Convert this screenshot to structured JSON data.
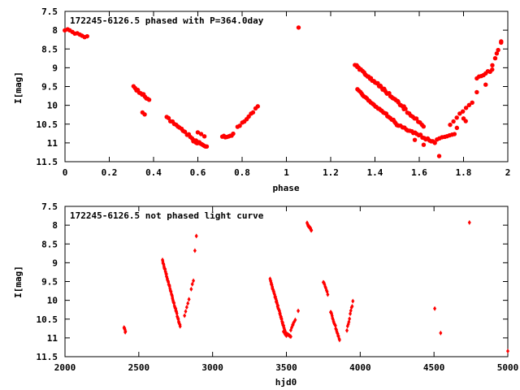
{
  "chart_data": [
    {
      "type": "scatter",
      "title": "172245-6126.5 phased with P=364.0day",
      "xlabel": "phase",
      "ylabel": "I[mag]",
      "xlim": [
        0,
        2
      ],
      "ylim": [
        7.5,
        11.5
      ],
      "y_inverted": true,
      "grid": false,
      "marker": "filled-circle",
      "color": "#ff0000",
      "xticks": [
        "0",
        "0.2",
        "0.4",
        "0.6",
        "0.8",
        "1",
        "1.2",
        "1.4",
        "1.6",
        "1.8",
        "2"
      ],
      "yticks": [
        "7.5",
        "8",
        "8.5",
        "9",
        "9.5",
        "10",
        "10.5",
        "11",
        "11.5"
      ],
      "segments": [
        {
          "x0": 0.0,
          "x1": 0.1,
          "y0": 7.98,
          "y1": 8.18,
          "n": 10
        },
        {
          "x0": 0.31,
          "x1": 0.38,
          "y0": 9.52,
          "y1": 9.85,
          "n": 12
        },
        {
          "x0": 0.35,
          "x1": 0.36,
          "y0": 10.2,
          "y1": 10.25,
          "n": 2
        },
        {
          "x0": 0.46,
          "x1": 0.6,
          "y0": 10.32,
          "y1": 11.0,
          "n": 18
        },
        {
          "x0": 0.58,
          "x1": 0.64,
          "y0": 10.95,
          "y1": 11.08,
          "n": 12
        },
        {
          "x0": 0.6,
          "x1": 0.63,
          "y0": 10.72,
          "y1": 10.8,
          "n": 3
        },
        {
          "x0": 0.71,
          "x1": 0.76,
          "y0": 10.85,
          "y1": 10.78,
          "n": 8
        },
        {
          "x0": 0.78,
          "x1": 0.87,
          "y0": 10.6,
          "y1": 10.05,
          "n": 10
        },
        {
          "x0": 1.31,
          "x1": 1.53,
          "y0": 8.92,
          "y1": 10.05,
          "n": 40
        },
        {
          "x0": 1.53,
          "x1": 1.62,
          "y0": 10.08,
          "y1": 10.55,
          "n": 12
        },
        {
          "x0": 1.32,
          "x1": 1.5,
          "y0": 9.6,
          "y1": 10.5,
          "n": 30
        },
        {
          "x0": 1.5,
          "x1": 1.67,
          "y0": 10.5,
          "y1": 11.0,
          "n": 22
        },
        {
          "x0": 1.68,
          "x1": 1.76,
          "y0": 10.93,
          "y1": 10.75,
          "n": 8
        },
        {
          "x0": 1.74,
          "x1": 1.84,
          "y0": 10.5,
          "y1": 9.9,
          "n": 8
        },
        {
          "x0": 1.86,
          "x1": 1.93,
          "y0": 9.3,
          "y1": 9.05,
          "n": 8
        },
        {
          "x0": 1.93,
          "x1": 1.97,
          "y0": 8.95,
          "y1": 8.35,
          "n": 4
        }
      ],
      "points": [
        [
          1.055,
          7.93
        ],
        [
          1.69,
          11.35
        ],
        [
          1.86,
          9.65
        ],
        [
          1.8,
          10.35
        ],
        [
          1.81,
          10.42
        ],
        [
          1.77,
          10.6
        ],
        [
          1.9,
          9.45
        ],
        [
          1.95,
          8.62
        ],
        [
          1.97,
          8.3
        ],
        [
          1.58,
          10.92
        ],
        [
          1.62,
          11.05
        ]
      ]
    },
    {
      "type": "scatter",
      "title": "172245-6126.5 not phased light curve",
      "xlabel": "hjd0",
      "ylabel": "I[mag]",
      "xlim": [
        2000,
        5000
      ],
      "ylim": [
        7.5,
        11.5
      ],
      "y_inverted": true,
      "grid": false,
      "marker": "filled-diamond",
      "color": "#ff0000",
      "xticks": [
        "2000",
        "2500",
        "3000",
        "3500",
        "4000",
        "4500",
        "5000"
      ],
      "yticks": [
        "7.5",
        "8",
        "8.5",
        "9",
        "9.5",
        "10",
        "10.5",
        "11",
        "11.5"
      ],
      "segments": [
        {
          "x0": 2400,
          "x1": 2410,
          "y0": 10.72,
          "y1": 10.85,
          "n": 6
        },
        {
          "x0": 2660,
          "x1": 2780,
          "y0": 8.92,
          "y1": 10.7,
          "n": 60
        },
        {
          "x0": 2810,
          "x1": 2840,
          "y0": 10.4,
          "y1": 10.0,
          "n": 5
        },
        {
          "x0": 2855,
          "x1": 2870,
          "y0": 9.7,
          "y1": 9.5,
          "n": 3
        },
        {
          "x0": 2880,
          "x1": 2890,
          "y0": 8.65,
          "y1": 8.3,
          "n": 2
        },
        {
          "x0": 3390,
          "x1": 3500,
          "y0": 9.45,
          "y1": 10.95,
          "n": 60
        },
        {
          "x0": 3480,
          "x1": 3530,
          "y0": 10.85,
          "y1": 10.95,
          "n": 10
        },
        {
          "x0": 3530,
          "x1": 3560,
          "y0": 10.8,
          "y1": 10.5,
          "n": 6
        },
        {
          "x0": 3640,
          "x1": 3670,
          "y0": 7.95,
          "y1": 8.15,
          "n": 10
        },
        {
          "x0": 3750,
          "x1": 3780,
          "y0": 9.5,
          "y1": 9.85,
          "n": 8
        },
        {
          "x0": 3800,
          "x1": 3860,
          "y0": 10.3,
          "y1": 11.05,
          "n": 20
        },
        {
          "x0": 3910,
          "x1": 3950,
          "y0": 10.8,
          "y1": 10.05,
          "n": 10
        }
      ],
      "points": [
        [
          3580,
          10.28
        ],
        [
          3545,
          10.65
        ],
        [
          4505,
          10.22
        ],
        [
          4545,
          10.87
        ],
        [
          4740,
          7.93
        ],
        [
          5000,
          11.35
        ]
      ]
    }
  ]
}
